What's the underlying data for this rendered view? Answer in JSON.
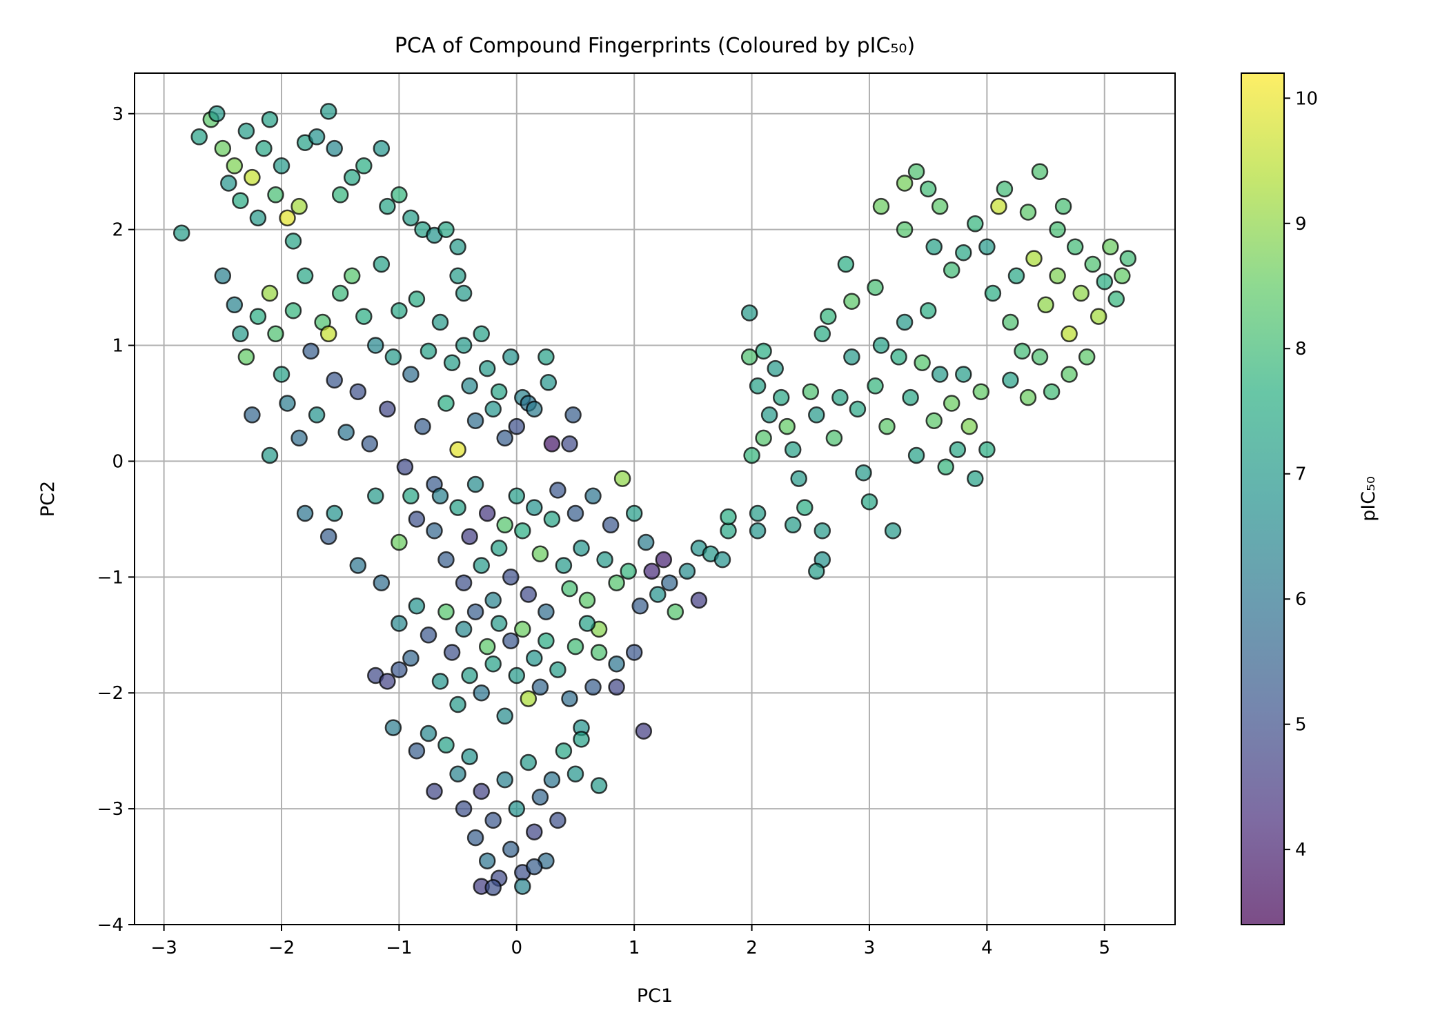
{
  "chart_data": {
    "type": "scatter",
    "title": "PCA of Compound Fingerprints (Coloured by pIC₅₀)",
    "xlabel": "PC1",
    "ylabel": "PC2",
    "xlim": [
      -3.25,
      5.6
    ],
    "ylim": [
      -4.0,
      3.35
    ],
    "x_ticks": [
      -3,
      -2,
      -1,
      0,
      1,
      2,
      3,
      4,
      5
    ],
    "y_ticks": [
      -4,
      -3,
      -2,
      -1,
      0,
      1,
      2,
      3
    ],
    "grid": true,
    "colormap": "viridis",
    "marker_alpha": 0.7,
    "marker_edge_color": "#000000",
    "colorbar": {
      "label": "pIC₅₀",
      "range": [
        3.4,
        10.2
      ],
      "ticks": [
        4,
        5,
        6,
        7,
        8,
        9,
        10
      ]
    },
    "clusters": [
      {
        "region": "upper-left arm",
        "x_range": [
          -2.9,
          -0.4
        ],
        "y_range": [
          0.0,
          3.0
        ],
        "pic50_typical": [
          6.5,
          8.5
        ]
      },
      {
        "region": "central band",
        "x_range": [
          -1.0,
          1.4
        ],
        "y_range": [
          -1.5,
          1.0
        ],
        "pic50_typical": [
          5.0,
          8.0
        ]
      },
      {
        "region": "lower tail",
        "x_range": [
          -0.9,
          0.4
        ],
        "y_range": [
          -3.7,
          -1.5
        ],
        "pic50_typical": [
          4.5,
          7.0
        ]
      },
      {
        "region": "right scattered group",
        "x_range": [
          1.6,
          4.1
        ],
        "y_range": [
          -1.1,
          2.5
        ],
        "pic50_typical": [
          7.0,
          8.5
        ]
      },
      {
        "region": "upper-right dense cluster",
        "x_range": [
          4.0,
          5.2
        ],
        "y_range": [
          0.5,
          2.5
        ],
        "pic50_typical": [
          7.5,
          9.5
        ]
      }
    ],
    "points": [
      [
        -2.85,
        1.97,
        7.1
      ],
      [
        -2.7,
        2.8,
        7.2
      ],
      [
        -2.6,
        2.95,
        8.4
      ],
      [
        -2.55,
        3.0,
        7.0
      ],
      [
        -2.5,
        2.7,
        8.6
      ],
      [
        -2.45,
        2.4,
        6.9
      ],
      [
        -2.4,
        2.55,
        8.8
      ],
      [
        -2.35,
        2.25,
        7.5
      ],
      [
        -2.3,
        2.85,
        7.1
      ],
      [
        -2.25,
        2.45,
        9.6
      ],
      [
        -2.2,
        2.1,
        7.0
      ],
      [
        -2.15,
        2.7,
        7.4
      ],
      [
        -2.1,
        2.95,
        7.2
      ],
      [
        -2.05,
        2.3,
        8.1
      ],
      [
        -2.0,
        2.55,
        7.0
      ],
      [
        -1.95,
        2.1,
        9.9
      ],
      [
        -1.9,
        1.9,
        7.3
      ],
      [
        -1.85,
        2.2,
        9.2
      ],
      [
        -1.8,
        2.75,
        7.2
      ],
      [
        -1.7,
        2.8,
        6.8
      ],
      [
        -1.6,
        3.02,
        7.0
      ],
      [
        -1.55,
        2.7,
        6.5
      ],
      [
        -1.5,
        2.3,
        7.8
      ],
      [
        -1.4,
        2.45,
        7.4
      ],
      [
        -1.3,
        2.55,
        7.6
      ],
      [
        -1.15,
        2.7,
        6.9
      ],
      [
        -1.1,
        2.2,
        7.3
      ],
      [
        -1.0,
        2.3,
        7.8
      ],
      [
        -0.9,
        2.1,
        7.1
      ],
      [
        -0.8,
        2.0,
        7.2
      ],
      [
        -0.7,
        1.95,
        6.9
      ],
      [
        -0.6,
        2.0,
        7.4
      ],
      [
        -0.5,
        1.85,
        7.0
      ],
      [
        -0.5,
        1.6,
        7.1
      ],
      [
        -0.45,
        1.45,
        7.0
      ],
      [
        -2.5,
        1.6,
        6.3
      ],
      [
        -2.4,
        1.35,
        6.4
      ],
      [
        -2.35,
        1.1,
        7.0
      ],
      [
        -2.3,
        0.9,
        8.5
      ],
      [
        -2.2,
        1.25,
        7.6
      ],
      [
        -2.1,
        1.45,
        9.1
      ],
      [
        -2.05,
        1.1,
        8.2
      ],
      [
        -2.0,
        0.75,
        7.2
      ],
      [
        -1.95,
        0.5,
        6.2
      ],
      [
        -1.9,
        1.3,
        7.8
      ],
      [
        -1.85,
        0.2,
        5.8
      ],
      [
        -1.8,
        1.6,
        7.4
      ],
      [
        -1.75,
        0.95,
        5.4
      ],
      [
        -1.7,
        0.4,
        6.8
      ],
      [
        -1.65,
        1.2,
        8.2
      ],
      [
        -1.6,
        1.1,
        9.6
      ],
      [
        -1.55,
        0.7,
        5.2
      ],
      [
        -1.5,
        1.45,
        7.9
      ],
      [
        -1.45,
        0.25,
        6.0
      ],
      [
        -1.4,
        1.6,
        8.3
      ],
      [
        -1.35,
        0.6,
        5.0
      ],
      [
        -1.3,
        1.25,
        7.6
      ],
      [
        -1.25,
        0.15,
        5.3
      ],
      [
        -1.2,
        1.0,
        6.5
      ],
      [
        -1.15,
        1.7,
        7.2
      ],
      [
        -1.1,
        0.45,
        4.8
      ],
      [
        -1.05,
        0.9,
        7.0
      ],
      [
        -1.0,
        1.3,
        7.4
      ],
      [
        -0.95,
        -0.05,
        4.9
      ],
      [
        -0.9,
        0.75,
        5.8
      ],
      [
        -0.85,
        1.4,
        7.5
      ],
      [
        -0.8,
        0.3,
        5.4
      ],
      [
        -0.75,
        0.95,
        7.2
      ],
      [
        -0.7,
        -0.2,
        5.3
      ],
      [
        -0.65,
        1.2,
        7.0
      ],
      [
        -0.6,
        0.5,
        7.6
      ],
      [
        -0.55,
        0.85,
        7.1
      ],
      [
        -0.5,
        0.1,
        9.9
      ],
      [
        -0.45,
        1.0,
        7.0
      ],
      [
        -0.4,
        0.65,
        6.5
      ],
      [
        -0.35,
        0.35,
        5.8
      ],
      [
        -0.3,
        1.1,
        7.2
      ],
      [
        -0.25,
        0.8,
        7.0
      ],
      [
        -0.2,
        0.45,
        6.9
      ],
      [
        -0.15,
        0.6,
        7.3
      ],
      [
        -0.1,
        0.2,
        5.4
      ],
      [
        -0.05,
        0.9,
        6.8
      ],
      [
        0.0,
        0.3,
        5.0
      ],
      [
        0.05,
        0.55,
        6.4
      ],
      [
        0.1,
        0.5,
        6.0
      ],
      [
        0.15,
        0.45,
        6.2
      ],
      [
        0.25,
        0.9,
        7.2
      ],
      [
        0.27,
        0.68,
        6.9
      ],
      [
        0.3,
        0.15,
        3.8
      ],
      [
        0.45,
        0.15,
        4.9
      ],
      [
        0.48,
        0.4,
        5.4
      ],
      [
        -2.1,
        0.05,
        7.0
      ],
      [
        -2.25,
        0.4,
        5.6
      ],
      [
        -1.8,
        -0.45,
        6.0
      ],
      [
        -1.6,
        -0.65,
        5.4
      ],
      [
        -1.55,
        -0.45,
        6.8
      ],
      [
        -1.35,
        -0.9,
        6.0
      ],
      [
        -1.2,
        -0.3,
        7.0
      ],
      [
        -1.0,
        -0.7,
        8.6
      ],
      [
        -0.9,
        -0.3,
        7.4
      ],
      [
        -0.85,
        -0.5,
        5.0
      ],
      [
        -0.7,
        -0.6,
        5.6
      ],
      [
        -0.65,
        -0.3,
        6.3
      ],
      [
        -0.6,
        -0.85,
        5.4
      ],
      [
        -0.5,
        -0.4,
        7.2
      ],
      [
        -0.45,
        -1.05,
        5.0
      ],
      [
        -0.4,
        -0.65,
        4.6
      ],
      [
        -0.35,
        -0.2,
        6.6
      ],
      [
        -0.3,
        -0.9,
        7.0
      ],
      [
        -0.25,
        -0.45,
        4.4
      ],
      [
        -0.2,
        -1.2,
        6.4
      ],
      [
        -0.15,
        -0.75,
        7.2
      ],
      [
        -0.1,
        -0.55,
        8.3
      ],
      [
        -0.05,
        -1.0,
        5.0
      ],
      [
        0.0,
        -0.3,
        7.1
      ],
      [
        0.05,
        -0.6,
        7.6
      ],
      [
        0.1,
        -1.15,
        4.9
      ],
      [
        0.15,
        -0.4,
        6.8
      ],
      [
        0.2,
        -0.8,
        8.6
      ],
      [
        0.25,
        -1.3,
        5.8
      ],
      [
        0.3,
        -0.5,
        7.3
      ],
      [
        0.35,
        -0.25,
        5.2
      ],
      [
        0.4,
        -0.9,
        7.0
      ],
      [
        0.45,
        -1.1,
        8.1
      ],
      [
        0.5,
        -0.45,
        5.4
      ],
      [
        0.55,
        -0.75,
        6.9
      ],
      [
        0.6,
        -1.2,
        8.4
      ],
      [
        0.65,
        -0.3,
        6.0
      ],
      [
        0.7,
        -1.45,
        8.9
      ],
      [
        0.75,
        -0.85,
        7.0
      ],
      [
        0.8,
        -0.55,
        5.2
      ],
      [
        0.85,
        -1.05,
        8.3
      ],
      [
        0.9,
        -0.15,
        9.0
      ],
      [
        0.95,
        -0.95,
        7.8
      ],
      [
        1.0,
        -0.45,
        7.1
      ],
      [
        1.05,
        -1.25,
        5.4
      ],
      [
        1.1,
        -0.7,
        6.2
      ],
      [
        1.15,
        -0.95,
        4.2
      ],
      [
        1.2,
        -1.15,
        6.8
      ],
      [
        1.25,
        -0.85,
        4.0
      ],
      [
        1.3,
        -1.05,
        5.6
      ],
      [
        1.35,
        -1.3,
        8.3
      ],
      [
        1.45,
        -0.95,
        6.6
      ],
      [
        1.55,
        -0.75,
        6.8
      ],
      [
        1.55,
        -1.2,
        4.6
      ],
      [
        1.65,
        -0.8,
        7.0
      ],
      [
        1.8,
        -0.6,
        7.4
      ],
      [
        1.75,
        -0.85,
        6.8
      ],
      [
        1.8,
        -0.48,
        7.6
      ],
      [
        2.05,
        -0.45,
        7.1
      ],
      [
        2.05,
        -0.6,
        6.9
      ],
      [
        -1.15,
        -1.05,
        5.8
      ],
      [
        -1.0,
        -1.4,
        6.5
      ],
      [
        -0.9,
        -1.7,
        5.6
      ],
      [
        -0.85,
        -1.25,
        6.8
      ],
      [
        -0.75,
        -1.5,
        5.2
      ],
      [
        -0.65,
        -1.9,
        6.9
      ],
      [
        -0.6,
        -1.3,
        8.3
      ],
      [
        -0.55,
        -1.65,
        5.0
      ],
      [
        -0.5,
        -2.1,
        7.0
      ],
      [
        -0.45,
        -1.45,
        6.5
      ],
      [
        -0.4,
        -1.85,
        7.1
      ],
      [
        -0.35,
        -1.3,
        5.4
      ],
      [
        -0.3,
        -2.0,
        6.0
      ],
      [
        -0.25,
        -1.6,
        8.4
      ],
      [
        -0.2,
        -1.75,
        7.2
      ],
      [
        -0.15,
        -1.4,
        7.0
      ],
      [
        -0.1,
        -2.2,
        6.6
      ],
      [
        -0.05,
        -1.55,
        5.2
      ],
      [
        0.0,
        -1.85,
        7.0
      ],
      [
        0.05,
        -1.45,
        8.6
      ],
      [
        0.1,
        -2.05,
        9.3
      ],
      [
        0.15,
        -1.7,
        6.9
      ],
      [
        0.2,
        -1.95,
        5.6
      ],
      [
        0.25,
        -1.55,
        7.5
      ],
      [
        0.35,
        -1.8,
        7.1
      ],
      [
        0.45,
        -2.05,
        5.8
      ],
      [
        0.5,
        -1.6,
        8.0
      ],
      [
        0.55,
        -2.3,
        6.8
      ],
      [
        0.6,
        -1.4,
        7.2
      ],
      [
        0.65,
        -1.95,
        5.4
      ],
      [
        0.7,
        -1.65,
        8.2
      ],
      [
        0.85,
        -1.75,
        6.0
      ],
      [
        0.85,
        -1.95,
        4.8
      ],
      [
        1.0,
        -1.65,
        5.2
      ],
      [
        1.08,
        -2.33,
        4.6
      ],
      [
        -1.2,
        -1.85,
        4.9
      ],
      [
        -1.1,
        -1.9,
        4.7
      ],
      [
        -1.0,
        -1.8,
        5.2
      ],
      [
        -1.05,
        -2.3,
        6.2
      ],
      [
        -0.85,
        -2.5,
        5.4
      ],
      [
        -0.75,
        -2.35,
        6.5
      ],
      [
        -0.7,
        -2.85,
        4.8
      ],
      [
        -0.6,
        -2.45,
        7.2
      ],
      [
        -0.5,
        -2.7,
        6.4
      ],
      [
        -0.45,
        -3.0,
        5.0
      ],
      [
        -0.4,
        -2.55,
        6.8
      ],
      [
        -0.35,
        -3.25,
        5.4
      ],
      [
        -0.3,
        -2.85,
        4.7
      ],
      [
        -0.25,
        -3.45,
        6.0
      ],
      [
        -0.2,
        -3.1,
        5.2
      ],
      [
        -0.15,
        -3.6,
        4.9
      ],
      [
        -0.1,
        -2.75,
        6.3
      ],
      [
        -0.05,
        -3.35,
        5.5
      ],
      [
        0.0,
        -3.0,
        6.8
      ],
      [
        0.05,
        -3.55,
        5.0
      ],
      [
        0.1,
        -2.6,
        7.0
      ],
      [
        0.15,
        -3.2,
        4.8
      ],
      [
        0.2,
        -2.9,
        5.6
      ],
      [
        0.25,
        -3.45,
        5.8
      ],
      [
        0.3,
        -2.75,
        6.0
      ],
      [
        0.35,
        -3.1,
        5.0
      ],
      [
        0.4,
        -2.5,
        7.4
      ],
      [
        0.5,
        -2.7,
        6.9
      ],
      [
        0.55,
        -2.4,
        7.2
      ],
      [
        0.7,
        -2.8,
        7.0
      ],
      [
        -0.3,
        -3.67,
        4.6
      ],
      [
        -0.2,
        -3.68,
        5.0
      ],
      [
        0.05,
        -3.67,
        6.4
      ],
      [
        0.15,
        -3.5,
        5.4
      ],
      [
        1.98,
        1.28,
        7.0
      ],
      [
        1.98,
        0.9,
        8.2
      ],
      [
        2.1,
        0.95,
        7.6
      ],
      [
        2.05,
        0.65,
        7.2
      ],
      [
        2.15,
        0.4,
        7.0
      ],
      [
        2.1,
        0.2,
        8.3
      ],
      [
        2.0,
        0.05,
        7.8
      ],
      [
        2.2,
        0.8,
        7.0
      ],
      [
        2.25,
        0.55,
        7.4
      ],
      [
        2.3,
        0.3,
        8.5
      ],
      [
        2.35,
        0.1,
        7.2
      ],
      [
        2.4,
        -0.15,
        7.0
      ],
      [
        2.45,
        -0.4,
        7.6
      ],
      [
        2.35,
        -0.55,
        7.1
      ],
      [
        2.5,
        0.6,
        8.2
      ],
      [
        2.55,
        0.4,
        7.0
      ],
      [
        2.6,
        1.1,
        7.5
      ],
      [
        2.65,
        1.25,
        7.8
      ],
      [
        2.7,
        0.2,
        8.2
      ],
      [
        2.75,
        0.55,
        7.3
      ],
      [
        2.6,
        -0.6,
        7.0
      ],
      [
        2.6,
        -0.85,
        6.8
      ],
      [
        2.55,
        -0.95,
        7.1
      ],
      [
        2.8,
        1.7,
        7.6
      ],
      [
        2.85,
        1.38,
        8.4
      ],
      [
        2.85,
        0.9,
        7.0
      ],
      [
        2.9,
        0.45,
        7.4
      ],
      [
        2.95,
        -0.1,
        7.0
      ],
      [
        3.0,
        -0.35,
        7.4
      ],
      [
        3.05,
        0.65,
        7.8
      ],
      [
        3.1,
        1.0,
        7.2
      ],
      [
        3.05,
        1.5,
        8.1
      ],
      [
        3.15,
        0.3,
        8.4
      ],
      [
        3.2,
        -0.6,
        7.0
      ],
      [
        3.25,
        0.9,
        7.6
      ],
      [
        3.3,
        1.2,
        7.0
      ],
      [
        3.35,
        0.55,
        7.4
      ],
      [
        3.4,
        0.05,
        7.2
      ],
      [
        3.45,
        0.85,
        8.3
      ],
      [
        3.5,
        1.3,
        7.6
      ],
      [
        3.55,
        0.35,
        8.4
      ],
      [
        3.6,
        0.75,
        7.0
      ],
      [
        3.65,
        -0.05,
        7.8
      ],
      [
        3.7,
        0.5,
        8.6
      ],
      [
        3.75,
        0.1,
        7.4
      ],
      [
        3.8,
        0.75,
        7.1
      ],
      [
        3.85,
        0.3,
        8.8
      ],
      [
        3.9,
        -0.15,
        7.2
      ],
      [
        3.95,
        0.6,
        8.5
      ],
      [
        4.0,
        0.1,
        7.6
      ],
      [
        3.3,
        2.4,
        8.7
      ],
      [
        3.4,
        2.5,
        8.2
      ],
      [
        3.5,
        2.35,
        8.0
      ],
      [
        3.6,
        2.2,
        8.4
      ],
      [
        3.1,
        2.2,
        8.6
      ],
      [
        3.3,
        2.0,
        8.3
      ],
      [
        3.55,
        1.85,
        7.2
      ],
      [
        3.7,
        1.65,
        8.0
      ],
      [
        3.8,
        1.8,
        7.4
      ],
      [
        3.9,
        2.05,
        7.8
      ],
      [
        4.0,
        1.85,
        7.0
      ],
      [
        4.05,
        1.45,
        7.6
      ],
      [
        4.1,
        2.2,
        9.6
      ],
      [
        4.15,
        2.35,
        8.0
      ],
      [
        4.2,
        1.2,
        8.2
      ],
      [
        4.25,
        1.6,
        7.4
      ],
      [
        4.3,
        0.95,
        8.0
      ],
      [
        4.35,
        2.15,
        8.4
      ],
      [
        4.4,
        1.75,
        9.3
      ],
      [
        4.45,
        2.5,
        8.2
      ],
      [
        4.5,
        1.35,
        9.0
      ],
      [
        4.55,
        0.6,
        8.0
      ],
      [
        4.6,
        1.6,
        8.8
      ],
      [
        4.65,
        2.2,
        8.1
      ],
      [
        4.7,
        1.1,
        9.5
      ],
      [
        4.75,
        1.85,
        8.0
      ],
      [
        4.8,
        1.45,
        9.0
      ],
      [
        4.85,
        0.9,
        8.4
      ],
      [
        4.9,
        1.7,
        8.2
      ],
      [
        4.95,
        1.25,
        9.2
      ],
      [
        5.0,
        1.55,
        7.6
      ],
      [
        5.05,
        1.85,
        8.6
      ],
      [
        5.1,
        1.4,
        7.8
      ],
      [
        5.15,
        1.6,
        8.5
      ],
      [
        5.2,
        1.75,
        8.0
      ],
      [
        4.2,
        0.7,
        7.2
      ],
      [
        4.35,
        0.55,
        8.6
      ],
      [
        4.45,
        0.9,
        8.2
      ],
      [
        4.7,
        0.75,
        8.4
      ],
      [
        4.6,
        2.0,
        8.1
      ]
    ]
  }
}
